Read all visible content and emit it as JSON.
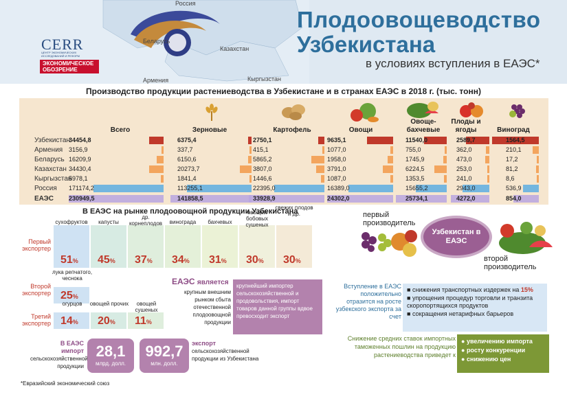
{
  "header": {
    "title_line1": "Плодоовощеводство",
    "title_line2": "Узбекистана",
    "subtitle": "в условиях вступления в ЕАЭС*",
    "map_labels": [
      "Россия",
      "Беларусь",
      "Казахстан",
      "Армения",
      "Кыргызстан"
    ],
    "logo_cerr": "CERR",
    "logo_cerr_sub": "ЦЕНТР ЭКОНОМИЧЕСКИХ ИССЛЕДОВАНИЙ И РЕФОРМ",
    "logo_eo": "ЭКОНОМИЧЕСКОЕ ОБОЗРЕНИЕ"
  },
  "table": {
    "title": "Производство продукции растениеводства в Узбекистане и в странах ЕАЭС в 2018 г. (тыс. тонн)",
    "columns": [
      "Всего",
      "Зерновые",
      "Картофель",
      "Овощи",
      "Овоще-бахчевые",
      "Плоды и ягоды",
      "Виноград"
    ],
    "rows": [
      {
        "label": "Узбекистан",
        "values": [
          "34454,8",
          "6375,4",
          "2750,1",
          "9635,1",
          "11540,0",
          "2589,7",
          "1564,5"
        ]
      },
      {
        "label": "Армения",
        "values": [
          "3156,9",
          "337,7",
          "415,1",
          "1077,0",
          "755,0",
          "362,0",
          "210,1"
        ]
      },
      {
        "label": "Беларусь",
        "values": [
          "16209,9",
          "6150,6",
          "5865,2",
          "1958,0",
          "1745,9",
          "473,0",
          "17,2"
        ]
      },
      {
        "label": "Казахстан",
        "values": [
          "34430,4",
          "20273,7",
          "3807,0",
          "3791,0",
          "6224,5",
          "253,0",
          "81,2"
        ]
      },
      {
        "label": "Кыргызстан",
        "values": [
          "5978,1",
          "1841,4",
          "1446,6",
          "1087,0",
          "1353,5",
          "241,0",
          "8,6"
        ]
      },
      {
        "label": "Россия",
        "values": [
          "171174,2",
          "113255,1",
          "22395,0",
          "16389,0",
          "15655,2",
          "2943,0",
          "536,9"
        ]
      },
      {
        "label": "ЕАЭС",
        "values": [
          "230949,5",
          "141858,5",
          "33928,9",
          "24302,0",
          "25734,1",
          "4272,0",
          "854,0"
        ]
      }
    ]
  },
  "exporters": {
    "title": "В ЕАЭС на рынке плодоовощной продукции Узбекистана",
    "first_label": "Первый экспортер",
    "second_label": "Второй экспортер",
    "third_label": "Третий экспортер",
    "first": [
      {
        "product": "сухофруктов",
        "pct": "51"
      },
      {
        "product": "капусты",
        "pct": "45"
      },
      {
        "product": "др. корнеплодов",
        "pct": "37"
      },
      {
        "product": "винограда",
        "pct": "34"
      },
      {
        "product": "бахчевых",
        "pct": "31"
      },
      {
        "product": "овощей бобовых сушеных",
        "pct": "30"
      },
      {
        "product": "свежих плодов и др.",
        "pct": "30"
      }
    ],
    "second": [
      {
        "product": "лука репчатого, чеснока",
        "pct": "25"
      }
    ],
    "third": [
      {
        "product": "огурцов",
        "pct": "14"
      },
      {
        "product": "овощей прочих",
        "pct": "20"
      },
      {
        "product": "овощей сушеных",
        "pct": "11"
      }
    ],
    "pct_sign": "%"
  },
  "eaes_is": {
    "heading": "ЕАЭС",
    "heading_suffix": "является",
    "market_text": "крупным внешним рынком сбыта отечественной плодоовощной продукции",
    "box_text": "крупнейший импортер сельскохозяйственной и продовольствия, импорт товаров данной группы вдвое превосходит экспорт"
  },
  "stats": {
    "import_caption_1": "В ЕАЭС",
    "import_caption_2": "импорт",
    "import_caption_3": "сельскохозяйственной продукции",
    "import_value": "28,1",
    "import_unit": "млрд. долл.",
    "export_value": "992,7",
    "export_unit": "млн. долл.",
    "export_caption_1": "экспорт",
    "export_caption_2": "сельскохозяйственной продукции из Узбекистана"
  },
  "right": {
    "first_producer": "первый производитель",
    "second_producer": "второй производитель",
    "circle_text": "Узбекистан в ЕАЭС",
    "join_text": "Вступление в ЕАЭС положительно отразится на росте узбекского экспорта за счет",
    "benefits": [
      "снижения транспортных издержек на",
      "упрощения процедур торговли и транзита скоропортящихся продуктов",
      "сокращения нетарифных барьеров"
    ],
    "benefit_pct": "15%",
    "tariff_text": "Снижение средних ставок импортных таможенных пошлин на продукцию растениеводства приведет к",
    "effects": [
      "увеличению импорта",
      "росту конкуренции",
      "снижению цен"
    ]
  },
  "footnote": "*Евразийский экономический союз",
  "colors": {
    "accent_blue": "#2e6f9c",
    "purple": "#b382ad",
    "red": "#c0392b",
    "green": "#7d9836"
  }
}
